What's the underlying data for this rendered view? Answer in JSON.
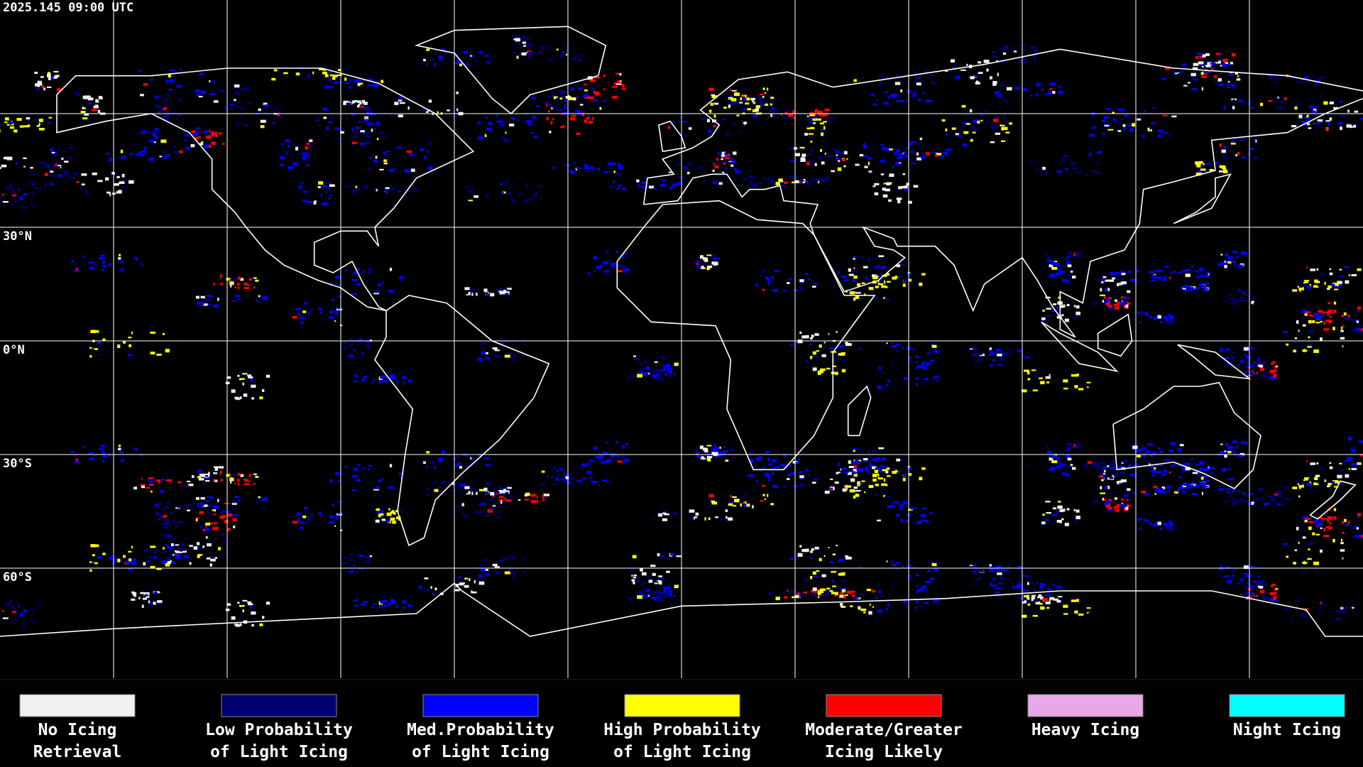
{
  "header": {
    "timestamp": "2025.145 09:00 UTC"
  },
  "map": {
    "lat_labels": [
      "30°N",
      "0°N",
      "30°S",
      "60°S"
    ]
  },
  "legend": {
    "items": [
      {
        "color": "#f0f0f0",
        "lines": [
          "No Icing",
          "Retrieval"
        ]
      },
      {
        "color": "#00006e",
        "lines": [
          "Low Probability",
          "of Light Icing"
        ]
      },
      {
        "color": "#0000ff",
        "lines": [
          "Med.Probability",
          "of Light Icing"
        ]
      },
      {
        "color": "#ffff00",
        "lines": [
          "High Probability",
          "of Light Icing"
        ]
      },
      {
        "color": "#ff0000",
        "lines": [
          "Moderate/Greater",
          "Icing Likely"
        ]
      },
      {
        "color": "#e8a8e8",
        "lines": [
          "Heavy Icing"
        ]
      },
      {
        "color": "#00ffff",
        "lines": [
          "Night Icing"
        ]
      }
    ]
  }
}
